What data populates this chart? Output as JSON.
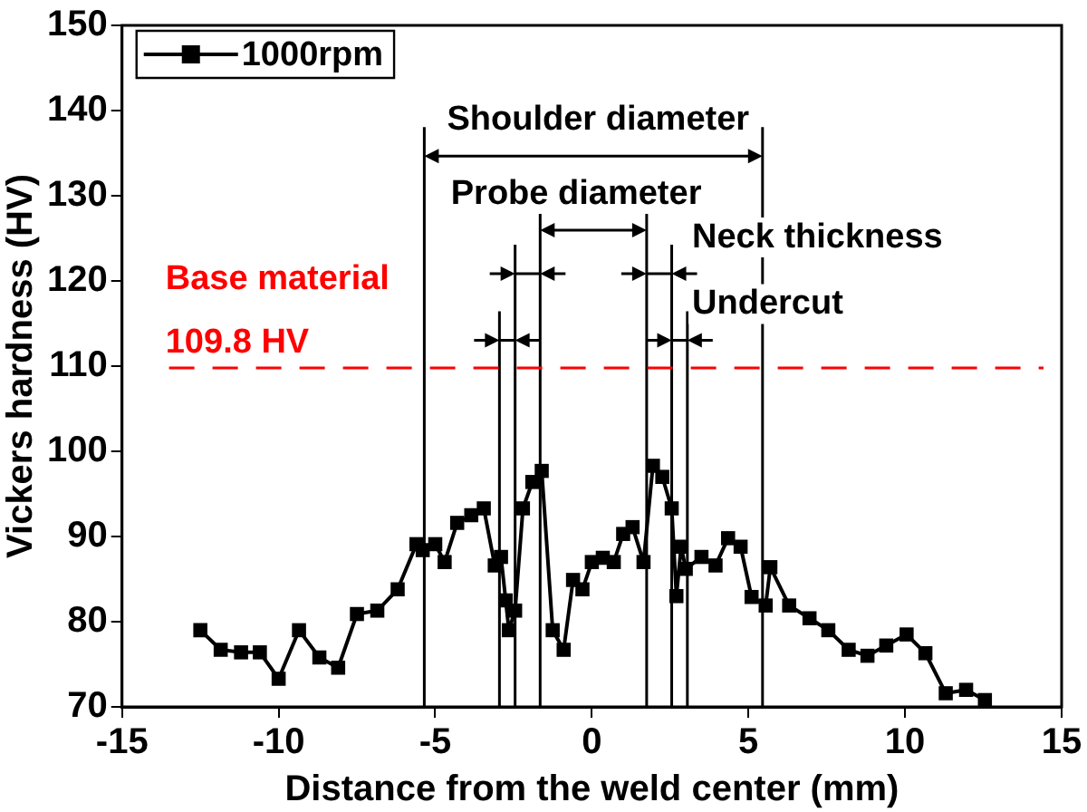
{
  "chart_data": {
    "type": "line",
    "xlabel": "Distance from the weld center (mm)",
    "ylabel": "Vickers hardness (HV)",
    "xlim": [
      -15,
      15
    ],
    "xticks": [
      -15,
      -10,
      -5,
      0,
      5,
      10,
      15
    ],
    "ylim": [
      70,
      150
    ],
    "yticks": [
      70,
      80,
      90,
      100,
      110,
      120,
      130,
      140,
      150
    ],
    "grid": false,
    "legend": "top left",
    "marker": "square",
    "line_style": "solid",
    "series": [
      {
        "name": "1000rpm",
        "color": "#000000",
        "x": [
          -12.5,
          -11.85,
          -11.2,
          -10.6,
          -10.0,
          -9.35,
          -8.7,
          -8.1,
          -7.5,
          -6.85,
          -6.2,
          -5.6,
          -5.4,
          -5.0,
          -4.7,
          -4.3,
          -3.85,
          -3.45,
          -3.1,
          -2.9,
          -2.75,
          -2.65,
          -2.45,
          -2.2,
          -1.9,
          -1.6,
          -1.25,
          -0.9,
          -0.6,
          -0.3,
          0.0,
          0.35,
          0.7,
          1.0,
          1.3,
          1.65,
          1.95,
          2.25,
          2.55,
          2.7,
          2.85,
          3.0,
          3.5,
          3.95,
          4.35,
          4.75,
          5.1,
          5.55,
          5.7,
          6.3,
          6.95,
          7.55,
          8.2,
          8.8,
          9.4,
          10.05,
          10.65,
          11.3,
          11.95,
          12.55
        ],
        "values": [
          79.0,
          76.7,
          76.4,
          76.4,
          73.3,
          79.0,
          75.8,
          74.6,
          80.9,
          81.3,
          83.8,
          89.1,
          88.4,
          89.1,
          87.0,
          91.6,
          92.5,
          93.3,
          86.6,
          87.6,
          82.5,
          79.0,
          81.3,
          93.3,
          96.4,
          97.7,
          79.0,
          76.7,
          84.9,
          83.8,
          87.0,
          87.5,
          87.0,
          90.3,
          91.1,
          87.0,
          98.3,
          97.0,
          93.3,
          83.0,
          88.8,
          86.2,
          87.6,
          86.6,
          89.8,
          88.8,
          82.9,
          81.9,
          86.4,
          81.9,
          80.4,
          79.0,
          76.7,
          76.0,
          77.2,
          78.5,
          76.3,
          71.6,
          72.0,
          70.8
        ]
      }
    ],
    "ref_lines": [
      {
        "axis": "x",
        "value": -5.35,
        "color": "#000000"
      },
      {
        "axis": "x",
        "value": 5.45,
        "color": "#000000"
      },
      {
        "axis": "x",
        "value": -1.65,
        "color": "#000000"
      },
      {
        "axis": "x",
        "value": 1.75,
        "color": "#000000"
      },
      {
        "axis": "x",
        "value": -2.45,
        "color": "#000000"
      },
      {
        "axis": "x",
        "value": 2.55,
        "color": "#000000"
      },
      {
        "axis": "x",
        "value": -2.95,
        "color": "#000000"
      },
      {
        "axis": "x",
        "value": 3.05,
        "color": "#000000"
      },
      {
        "axis": "y",
        "value": 109.8,
        "label": "Base material\n109.8 HV",
        "color": "#ff0000",
        "line_style": "dashed"
      }
    ],
    "annotations": [
      "Shoulder diameter",
      "Probe diameter",
      "Neck thickness",
      "Undercut"
    ]
  }
}
